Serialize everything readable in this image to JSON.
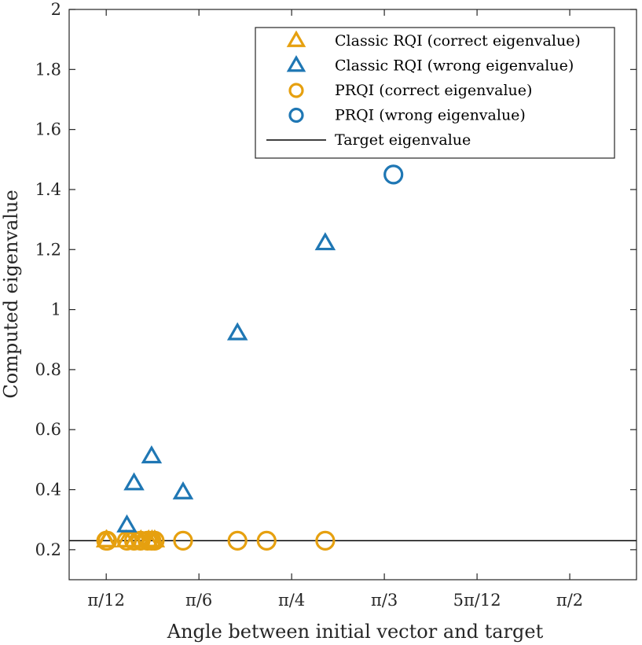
{
  "chart_data": {
    "type": "scatter",
    "title": "",
    "xlabel": "Angle between initial vector and target",
    "ylabel": "Computed eigenvalue",
    "xlim": [
      0.05,
      0.56
    ],
    "ylim": [
      0.1,
      2.0
    ],
    "xticks": [
      {
        "value": 0.08333,
        "label": "π/12"
      },
      {
        "value": 0.16667,
        "label": "π/6"
      },
      {
        "value": 0.25,
        "label": "π/4"
      },
      {
        "value": 0.33333,
        "label": "π/3"
      },
      {
        "value": 0.41667,
        "label": "5π/12"
      },
      {
        "value": 0.5,
        "label": "π/2"
      }
    ],
    "yticks": [
      {
        "value": 0.2,
        "label": "0.2"
      },
      {
        "value": 0.4,
        "label": "0.4"
      },
      {
        "value": 0.6,
        "label": "0.6"
      },
      {
        "value": 0.8,
        "label": "0.8"
      },
      {
        "value": 1.0,
        "label": "1"
      },
      {
        "value": 1.2,
        "label": "1.2"
      },
      {
        "value": 1.4,
        "label": "1.4"
      },
      {
        "value": 1.6,
        "label": "1.6"
      },
      {
        "value": 1.8,
        "label": "1.8"
      },
      {
        "value": 2.0,
        "label": "2"
      }
    ],
    "x_unit_note": "x values are angle / π",
    "grid": false,
    "legend_position": "top-right",
    "target_eigenvalue": 0.23,
    "series": [
      {
        "name": "Classic RQI (correct eigenvalue)",
        "marker": "triangle",
        "color": "#E6A00F",
        "points": [
          [
            0.0833,
            0.23
          ],
          [
            0.0838,
            0.23
          ],
          [
            0.1013,
            0.23
          ],
          [
            0.1083,
            0.23
          ],
          [
            0.1145,
            0.23
          ],
          [
            0.1215,
            0.23
          ],
          [
            0.1245,
            0.23
          ],
          [
            0.1269,
            0.23
          ]
        ]
      },
      {
        "name": "Classic RQI (wrong eigenvalue)",
        "marker": "triangle",
        "color": "#1F77B4",
        "points": [
          [
            0.1019,
            0.28
          ],
          [
            0.1083,
            0.42
          ],
          [
            0.1241,
            0.51
          ],
          [
            0.1524,
            0.39
          ],
          [
            0.2013,
            0.92
          ],
          [
            0.2802,
            1.22
          ]
        ]
      },
      {
        "name": "PRQI (correct eigenvalue)",
        "marker": "circle",
        "color": "#E6A00F",
        "points": [
          [
            0.0833,
            0.23
          ],
          [
            0.0842,
            0.23
          ],
          [
            0.1019,
            0.23
          ],
          [
            0.1083,
            0.23
          ],
          [
            0.1142,
            0.23
          ],
          [
            0.1204,
            0.23
          ],
          [
            0.1241,
            0.23
          ],
          [
            0.1269,
            0.23
          ],
          [
            0.1524,
            0.23
          ],
          [
            0.2013,
            0.23
          ],
          [
            0.2275,
            0.23
          ],
          [
            0.2802,
            0.23
          ]
        ]
      },
      {
        "name": "PRQI (wrong eigenvalue)",
        "marker": "circle",
        "color": "#1F77B4",
        "points": [
          [
            0.3415,
            1.45
          ]
        ]
      },
      {
        "name": "Target eigenvalue",
        "marker": "line",
        "color": "#000000",
        "points": []
      }
    ]
  }
}
